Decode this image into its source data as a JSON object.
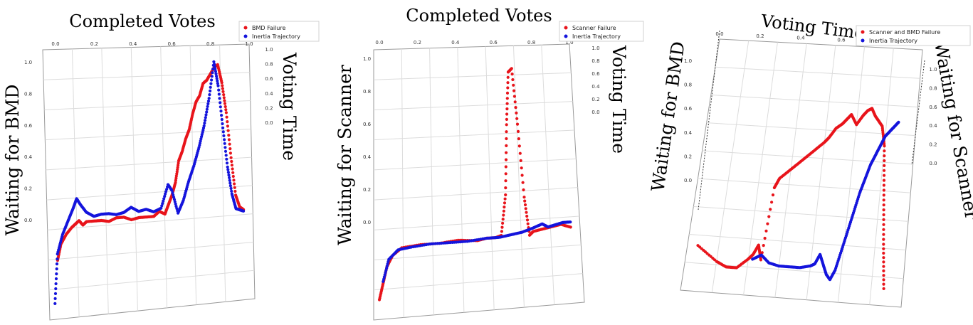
{
  "colors": {
    "red_series": "#e8141b",
    "blue_series": "#1414dc"
  },
  "chart_data": [
    {
      "type": "scatter",
      "title": "Completed Votes",
      "zlabel": "Voting Time",
      "ylabel": "Waiting for BMD",
      "top_ticks": [
        "0.0",
        "0.2",
        "0.4",
        "0.6",
        "0.8",
        "1.0"
      ],
      "right_ticks": [
        "1.0",
        "0.8",
        "0.6",
        "0.4",
        "0.2",
        "0.0"
      ],
      "left_ticks": [
        "1.0",
        "0.8",
        "0.6",
        "0.4",
        "0.2",
        "0.0"
      ],
      "legend_position": "top-right",
      "series": [
        {
          "name": "BMD Failure",
          "color": "#e8141b",
          "x": [
            0.0,
            0.02,
            0.05,
            0.08,
            0.1,
            0.12,
            0.14,
            0.16,
            0.2,
            0.24,
            0.28,
            0.32,
            0.36,
            0.4,
            0.44,
            0.48,
            0.52,
            0.55,
            0.58,
            0.6,
            0.62,
            0.64,
            0.66,
            0.68,
            0.7,
            0.72,
            0.74,
            0.76,
            0.78,
            0.8,
            0.82,
            0.84,
            0.86,
            0.88,
            0.9,
            0.92,
            0.94,
            0.96,
            0.98,
            1.0
          ],
          "y": [
            -0.28,
            -0.18,
            -0.12,
            -0.08,
            -0.06,
            -0.04,
            -0.07,
            -0.05,
            -0.05,
            -0.05,
            -0.06,
            -0.04,
            -0.04,
            -0.06,
            -0.05,
            -0.05,
            -0.05,
            -0.02,
            -0.04,
            0.02,
            0.08,
            0.16,
            0.3,
            0.36,
            0.44,
            0.5,
            0.6,
            0.68,
            0.72,
            0.8,
            0.82,
            0.86,
            0.9,
            0.92,
            0.8,
            0.6,
            0.3,
            0.05,
            -0.03,
            -0.05
          ]
        },
        {
          "name": "Inertia Trajectory",
          "color": "#1414dc",
          "x": [
            -0.02,
            0.0,
            0.03,
            0.06,
            0.09,
            0.11,
            0.13,
            0.16,
            0.2,
            0.24,
            0.28,
            0.32,
            0.36,
            0.4,
            0.44,
            0.48,
            0.52,
            0.56,
            0.6,
            0.62,
            0.65,
            0.68,
            0.71,
            0.74,
            0.77,
            0.8,
            0.83,
            0.86,
            0.88,
            0.9,
            0.92,
            0.94,
            0.96,
            0.98,
            1.0
          ],
          "y": [
            -0.55,
            -0.24,
            -0.12,
            -0.04,
            0.04,
            0.1,
            0.06,
            0.01,
            -0.02,
            -0.01,
            -0.01,
            -0.02,
            -0.01,
            0.02,
            -0.01,
            0.0,
            -0.02,
            0.0,
            0.15,
            0.11,
            -0.04,
            0.04,
            0.16,
            0.26,
            0.38,
            0.52,
            0.7,
            0.94,
            0.78,
            0.5,
            0.24,
            0.06,
            -0.04,
            -0.05,
            -0.06
          ]
        }
      ]
    },
    {
      "type": "scatter",
      "title": "Completed Votes",
      "zlabel": "Voting Time",
      "ylabel": "Waiting for Scanner",
      "top_ticks": [
        "0.0",
        "0.2",
        "0.4",
        "0.6",
        "0.8",
        "1.0"
      ],
      "right_ticks": [
        "1.0",
        "0.8",
        "0.6",
        "0.4",
        "0.2",
        "0.0"
      ],
      "left_ticks": [
        "1.0",
        "0.8",
        "0.6",
        "0.4",
        "0.2",
        "0.0"
      ],
      "legend_position": "top-right",
      "series": [
        {
          "name": "Scanner Failure",
          "color": "#e8141b",
          "x": [
            -0.02,
            0.0,
            0.02,
            0.05,
            0.1,
            0.2,
            0.3,
            0.4,
            0.5,
            0.55,
            0.6,
            0.63,
            0.66,
            0.68,
            0.7,
            0.72,
            0.74,
            0.76,
            0.78,
            0.8,
            0.85,
            0.9,
            0.95,
            1.0
          ],
          "y": [
            -0.34,
            -0.25,
            -0.16,
            -0.1,
            -0.06,
            -0.05,
            -0.05,
            -0.04,
            -0.05,
            -0.04,
            -0.04,
            -0.03,
            0.2,
            0.6,
            0.9,
            0.92,
            0.6,
            0.18,
            -0.04,
            -0.02,
            -0.01,
            0.0,
            0.01,
            -0.01
          ]
        },
        {
          "name": "Inertia Trajectory",
          "color": "#1414dc",
          "x": [
            0.0,
            0.03,
            0.08,
            0.15,
            0.25,
            0.35,
            0.45,
            0.55,
            0.62,
            0.68,
            0.74,
            0.8,
            0.85,
            0.88,
            0.92,
            0.96,
            1.0
          ],
          "y": [
            -0.24,
            -0.12,
            -0.07,
            -0.06,
            -0.05,
            -0.05,
            -0.05,
            -0.04,
            -0.04,
            -0.03,
            -0.02,
            0.0,
            0.02,
            0.0,
            0.01,
            0.02,
            0.02
          ]
        }
      ]
    },
    {
      "type": "scatter",
      "title": "Voting Time",
      "zlabel": "Waiting for Scanner",
      "ylabel": "Waiting for BMD",
      "top_ticks": [
        "0.0",
        "0.2",
        "0.4",
        "0.6",
        "0.8",
        "1.0"
      ],
      "right_ticks": [
        "1.0",
        "0.8",
        "0.6",
        "0.4",
        "0.2",
        "0.0"
      ],
      "left_ticks": [
        "1.0",
        "0.8",
        "0.6",
        "0.4",
        "0.2",
        "0.0"
      ],
      "legend_position": "top-right",
      "series": [
        {
          "name": "Scanner and BMD Failure",
          "color": "#e8141b",
          "x": [
            0.05,
            0.15,
            0.2,
            0.25,
            0.3,
            0.32,
            0.34,
            0.36,
            0.38,
            0.4,
            0.45,
            0.5,
            0.55,
            0.6,
            0.62,
            0.65,
            0.68,
            0.7,
            0.72,
            0.75,
            0.78,
            0.8,
            0.82,
            0.84,
            0.86,
            0.88,
            0.9,
            0.92,
            0.94,
            0.96
          ],
          "y": [
            0.14,
            0.08,
            0.06,
            0.06,
            0.1,
            0.12,
            0.16,
            0.1,
            0.4,
            0.44,
            0.48,
            0.52,
            0.56,
            0.6,
            0.62,
            0.66,
            0.68,
            0.7,
            0.72,
            0.68,
            0.72,
            0.74,
            0.75,
            0.72,
            0.7,
            0.68,
            0.6,
            0.4,
            0.2,
            0.02
          ]
        },
        {
          "name": "Inertia Trajectory",
          "color": "#1414dc",
          "x": [
            0.32,
            0.36,
            0.4,
            0.45,
            0.5,
            0.55,
            0.6,
            0.62,
            0.64,
            0.66,
            0.68,
            0.7,
            0.72,
            0.74,
            0.76,
            0.78,
            0.8,
            0.82,
            0.84,
            0.86,
            0.88,
            0.9,
            0.92,
            0.94,
            0.96
          ],
          "y": [
            0.1,
            0.12,
            0.09,
            0.08,
            0.08,
            0.08,
            0.09,
            0.1,
            0.14,
            0.1,
            0.06,
            0.04,
            0.08,
            0.16,
            0.24,
            0.32,
            0.4,
            0.46,
            0.52,
            0.56,
            0.6,
            0.64,
            0.66,
            0.68,
            0.7
          ]
        }
      ]
    }
  ]
}
